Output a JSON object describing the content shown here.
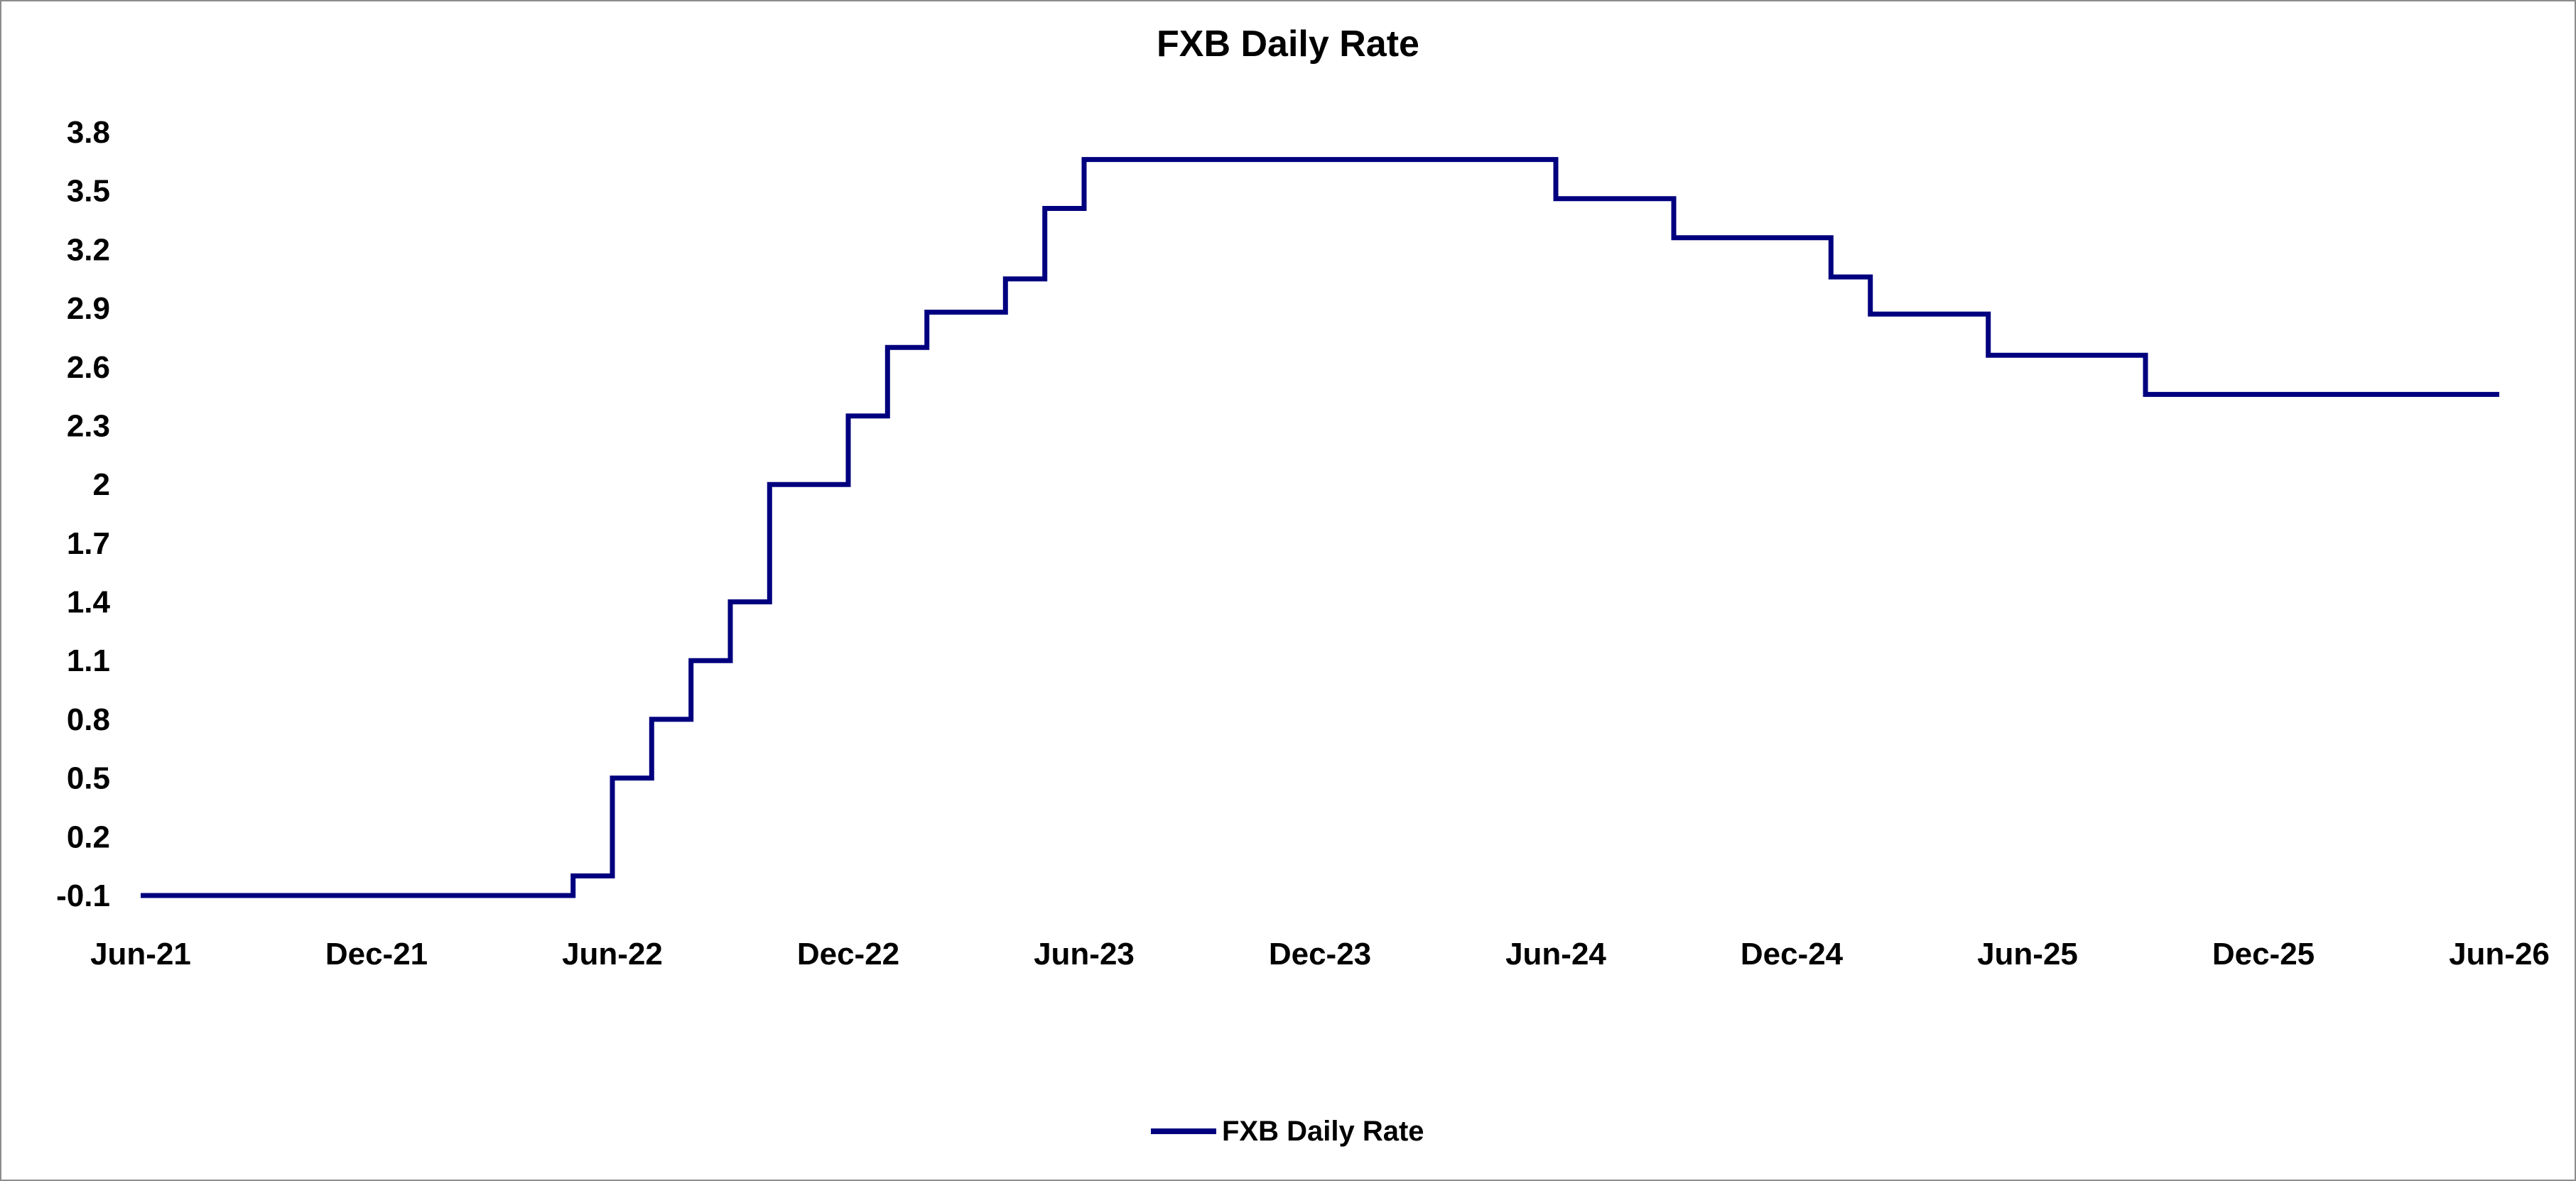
{
  "chart_data": {
    "type": "line",
    "step": true,
    "title": "FXB Daily Rate",
    "xlabel": "",
    "ylabel": "",
    "x_ticks": [
      "Jun-21",
      "Dec-21",
      "Jun-22",
      "Dec-22",
      "Jun-23",
      "Dec-23",
      "Jun-24",
      "Dec-24",
      "Jun-25",
      "Dec-25",
      "Jun-26"
    ],
    "y_ticks": [
      "-0.1",
      "0.2",
      "0.5",
      "0.8",
      "1.1",
      "1.4",
      "1.7",
      "2",
      "2.3",
      "2.6",
      "2.9",
      "3.2",
      "3.5",
      "3.8"
    ],
    "xlim": [
      "2021-06",
      "2026-06"
    ],
    "ylim": [
      -0.1,
      3.8
    ],
    "grid": false,
    "legend_position": "bottom",
    "series": [
      {
        "name": "FXB Daily Rate",
        "color": "#00007f",
        "points": [
          {
            "x": "2021-06",
            "y": -0.1
          },
          {
            "x": "2022-05",
            "y": -0.1
          },
          {
            "x": "2022-05",
            "y": 0.0
          },
          {
            "x": "2022-06",
            "y": 0.0
          },
          {
            "x": "2022-06",
            "y": 0.5
          },
          {
            "x": "2022-07",
            "y": 0.5
          },
          {
            "x": "2022-07",
            "y": 0.8
          },
          {
            "x": "2022-08",
            "y": 0.8
          },
          {
            "x": "2022-08",
            "y": 1.1
          },
          {
            "x": "2022-09",
            "y": 1.1
          },
          {
            "x": "2022-09",
            "y": 1.4
          },
          {
            "x": "2022-10",
            "y": 1.4
          },
          {
            "x": "2022-10",
            "y": 2.0
          },
          {
            "x": "2022-12",
            "y": 2.0
          },
          {
            "x": "2022-12",
            "y": 2.35
          },
          {
            "x": "2023-01",
            "y": 2.35
          },
          {
            "x": "2023-01",
            "y": 2.7
          },
          {
            "x": "2023-02",
            "y": 2.7
          },
          {
            "x": "2023-02",
            "y": 2.88
          },
          {
            "x": "2023-04",
            "y": 2.88
          },
          {
            "x": "2023-04",
            "y": 3.05
          },
          {
            "x": "2023-05",
            "y": 3.05
          },
          {
            "x": "2023-05",
            "y": 3.41
          },
          {
            "x": "2023-06",
            "y": 3.41
          },
          {
            "x": "2023-06",
            "y": 3.66
          },
          {
            "x": "2024-06",
            "y": 3.66
          },
          {
            "x": "2024-06",
            "y": 3.46
          },
          {
            "x": "2024-09",
            "y": 3.46
          },
          {
            "x": "2024-09",
            "y": 3.26
          },
          {
            "x": "2025-01",
            "y": 3.26
          },
          {
            "x": "2025-01",
            "y": 3.06
          },
          {
            "x": "2025-02",
            "y": 3.06
          },
          {
            "x": "2025-02",
            "y": 2.87
          },
          {
            "x": "2025-05",
            "y": 2.87
          },
          {
            "x": "2025-05",
            "y": 2.66
          },
          {
            "x": "2025-09",
            "y": 2.66
          },
          {
            "x": "2025-09",
            "y": 2.46
          },
          {
            "x": "2026-06",
            "y": 2.46
          }
        ]
      }
    ]
  }
}
